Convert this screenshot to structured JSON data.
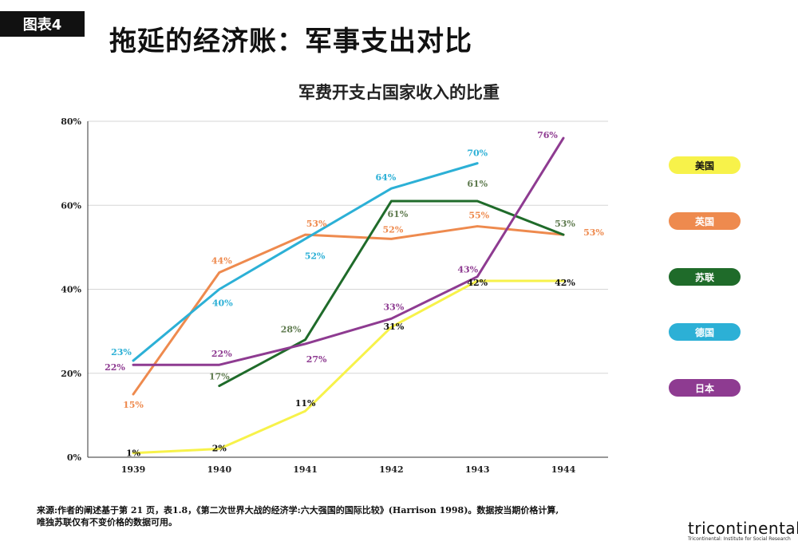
{
  "header": {
    "tag": "图表4",
    "title": "拖延的经济账：军事支出对比"
  },
  "chart_data": {
    "type": "line",
    "title": "军费开支占国家收入的比重",
    "x": [
      "1939",
      "1940",
      "1941",
      "1942",
      "1943",
      "1944"
    ],
    "yticks": [
      "0%",
      "20%",
      "40%",
      "60%",
      "80%"
    ],
    "ylim": [
      0,
      80
    ],
    "grid": true,
    "legend_position": "right",
    "series": [
      {
        "name": "美国",
        "color": "#f7f24a",
        "text_color": "#111111",
        "values": [
          1,
          2,
          11,
          31,
          42,
          42
        ]
      },
      {
        "name": "英国",
        "color": "#ee8a4e",
        "text_color": "#ee8a4e",
        "values": [
          15,
          44,
          53,
          52,
          55,
          53
        ]
      },
      {
        "name": "苏联",
        "color": "#1f6b2a",
        "text_color": "#5e7a4e",
        "values": [
          null,
          17,
          28,
          61,
          61,
          53
        ]
      },
      {
        "name": "德国",
        "color": "#2cb0d6",
        "text_color": "#2cb0d6",
        "values": [
          23,
          40,
          52,
          64,
          70,
          null
        ]
      },
      {
        "name": "日本",
        "color": "#8e3b91",
        "text_color": "#8e3b91",
        "values": [
          22,
          22,
          27,
          33,
          43,
          76
        ]
      }
    ]
  },
  "footer": {
    "source_line1": "来源:作者的阐述基于第 21 页，表1.8，《第二次世界大战的经济学:六大强国的国际比较》(Harrison 1998)。数据按当期价格计算,",
    "source_line2": "唯独苏联仅有不变价格的数据可用。",
    "brand": "tricontinental",
    "brand_sub": "Tricontinental: Institute for Social Research"
  }
}
